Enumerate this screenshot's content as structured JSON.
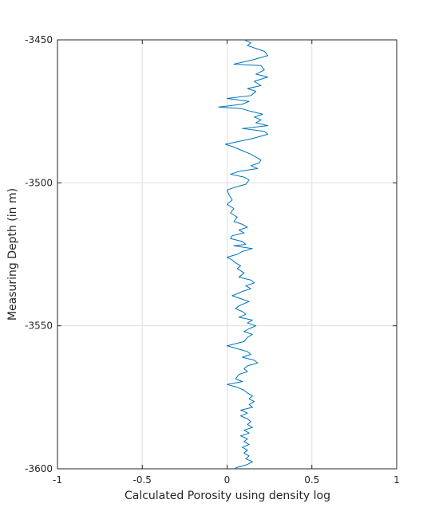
{
  "chart_data": {
    "type": "line",
    "title": "",
    "xlabel": "Calculated Porosity using density log",
    "ylabel": "Measuring Depth (in m)",
    "xlim": [
      -1,
      1
    ],
    "ylim": [
      -3600,
      -3450
    ],
    "xticks": [
      -1,
      -0.5,
      0,
      0.5,
      1
    ],
    "xtick_labels": [
      "-1",
      "-0.5",
      "0",
      "0.5",
      "1"
    ],
    "yticks": [
      -3450,
      -3500,
      -3550,
      -3600
    ],
    "ytick_labels": [
      "-3450",
      "-3500",
      "-3550",
      "-3600"
    ],
    "grid": true,
    "legend": "none",
    "colors": {
      "line": "#0072bd",
      "grid": "#dfdfdf",
      "axis": "#262626"
    },
    "series": [
      {
        "points": [
          [
            0.1,
            -3450.0
          ],
          [
            0.14,
            -3451.0
          ],
          [
            0.12,
            -3452.0
          ],
          [
            0.17,
            -3453.0
          ],
          [
            0.22,
            -3454.0
          ],
          [
            0.24,
            -3455.5
          ],
          [
            0.15,
            -3457.0
          ],
          [
            0.04,
            -3458.5
          ],
          [
            0.2,
            -3459.0
          ],
          [
            0.22,
            -3460.5
          ],
          [
            0.17,
            -3462.0
          ],
          [
            0.24,
            -3463.0
          ],
          [
            0.16,
            -3464.5
          ],
          [
            0.2,
            -3466.0
          ],
          [
            0.12,
            -3467.0
          ],
          [
            0.17,
            -3468.0
          ],
          [
            0.14,
            -3469.5
          ],
          [
            0.0,
            -3470.5
          ],
          [
            0.13,
            -3471.5
          ],
          [
            0.09,
            -3472.5
          ],
          [
            -0.05,
            -3473.5
          ],
          [
            0.08,
            -3474.0
          ],
          [
            0.14,
            -3475.0
          ],
          [
            0.21,
            -3476.0
          ],
          [
            0.16,
            -3477.0
          ],
          [
            0.2,
            -3478.0
          ],
          [
            0.17,
            -3479.0
          ],
          [
            0.24,
            -3480.0
          ],
          [
            0.09,
            -3481.0
          ],
          [
            0.22,
            -3482.0
          ],
          [
            0.24,
            -3483.0
          ],
          [
            0.15,
            -3484.5
          ],
          [
            0.07,
            -3485.5
          ],
          [
            -0.01,
            -3486.5
          ],
          [
            0.04,
            -3487.5
          ],
          [
            0.1,
            -3489.0
          ],
          [
            0.14,
            -3490.0
          ],
          [
            0.17,
            -3491.0
          ],
          [
            0.2,
            -3492.0
          ],
          [
            0.19,
            -3493.0
          ],
          [
            0.14,
            -3494.0
          ],
          [
            0.18,
            -3495.0
          ],
          [
            0.07,
            -3496.0
          ],
          [
            0.02,
            -3497.0
          ],
          [
            0.1,
            -3498.0
          ],
          [
            0.13,
            -3499.0
          ],
          [
            0.11,
            -3500.5
          ],
          [
            0.05,
            -3501.5
          ],
          [
            0.0,
            -3502.5
          ],
          [
            0.01,
            -3504.0
          ],
          [
            0.03,
            -3506.0
          ],
          [
            0.0,
            -3507.5
          ],
          [
            0.04,
            -3509.0
          ],
          [
            0.02,
            -3510.5
          ],
          [
            0.06,
            -3512.0
          ],
          [
            0.04,
            -3513.5
          ],
          [
            0.09,
            -3514.5
          ],
          [
            0.12,
            -3515.5
          ],
          [
            0.07,
            -3516.5
          ],
          [
            0.1,
            -3517.5
          ],
          [
            0.03,
            -3518.5
          ],
          [
            0.02,
            -3519.5
          ],
          [
            0.09,
            -3520.5
          ],
          [
            0.11,
            -3521.5
          ],
          [
            0.04,
            -3522.0
          ],
          [
            0.15,
            -3523.0
          ],
          [
            0.09,
            -3524.0
          ],
          [
            0.06,
            -3525.0
          ],
          [
            0.0,
            -3526.0
          ],
          [
            0.03,
            -3527.0
          ],
          [
            0.05,
            -3528.0
          ],
          [
            0.08,
            -3529.0
          ],
          [
            0.06,
            -3530.0
          ],
          [
            0.1,
            -3531.5
          ],
          [
            0.07,
            -3533.0
          ],
          [
            0.14,
            -3534.0
          ],
          [
            0.16,
            -3535.0
          ],
          [
            0.11,
            -3536.0
          ],
          [
            0.14,
            -3537.0
          ],
          [
            0.09,
            -3538.0
          ],
          [
            0.03,
            -3539.5
          ],
          [
            0.08,
            -3540.5
          ],
          [
            0.13,
            -3541.5
          ],
          [
            0.07,
            -3543.0
          ],
          [
            0.05,
            -3544.0
          ],
          [
            0.09,
            -3545.0
          ],
          [
            0.11,
            -3546.0
          ],
          [
            0.07,
            -3547.0
          ],
          [
            0.15,
            -3548.0
          ],
          [
            0.12,
            -3549.0
          ],
          [
            0.17,
            -3550.0
          ],
          [
            0.13,
            -3551.0
          ],
          [
            0.1,
            -3552.0
          ],
          [
            0.15,
            -3553.0
          ],
          [
            0.12,
            -3554.0
          ],
          [
            0.1,
            -3555.5
          ],
          [
            0.0,
            -3557.0
          ],
          [
            0.06,
            -3558.0
          ],
          [
            0.12,
            -3559.0
          ],
          [
            0.14,
            -3560.0
          ],
          [
            0.09,
            -3561.0
          ],
          [
            0.16,
            -3562.0
          ],
          [
            0.18,
            -3563.0
          ],
          [
            0.12,
            -3564.0
          ],
          [
            0.1,
            -3565.0
          ],
          [
            0.12,
            -3566.0
          ],
          [
            0.07,
            -3567.0
          ],
          [
            0.05,
            -3568.5
          ],
          [
            0.09,
            -3569.5
          ],
          [
            0.0,
            -3570.5
          ],
          [
            0.06,
            -3571.5
          ],
          [
            0.1,
            -3572.5
          ],
          [
            0.12,
            -3573.5
          ],
          [
            0.15,
            -3574.5
          ],
          [
            0.13,
            -3575.5
          ],
          [
            0.16,
            -3576.5
          ],
          [
            0.13,
            -3577.5
          ],
          [
            0.15,
            -3578.5
          ],
          [
            0.08,
            -3579.5
          ],
          [
            0.12,
            -3580.5
          ],
          [
            0.08,
            -3581.5
          ],
          [
            0.12,
            -3582.5
          ],
          [
            0.14,
            -3583.5
          ],
          [
            0.12,
            -3584.5
          ],
          [
            0.15,
            -3585.5
          ],
          [
            0.1,
            -3586.5
          ],
          [
            0.13,
            -3587.5
          ],
          [
            0.08,
            -3588.5
          ],
          [
            0.12,
            -3589.5
          ],
          [
            0.1,
            -3590.5
          ],
          [
            0.13,
            -3591.5
          ],
          [
            0.09,
            -3592.5
          ],
          [
            0.12,
            -3593.5
          ],
          [
            0.1,
            -3594.5
          ],
          [
            0.13,
            -3595.5
          ],
          [
            0.11,
            -3596.5
          ],
          [
            0.15,
            -3597.5
          ],
          [
            0.12,
            -3598.5
          ],
          [
            0.06,
            -3599.5
          ],
          [
            0.04,
            -3600.0
          ]
        ]
      }
    ]
  }
}
